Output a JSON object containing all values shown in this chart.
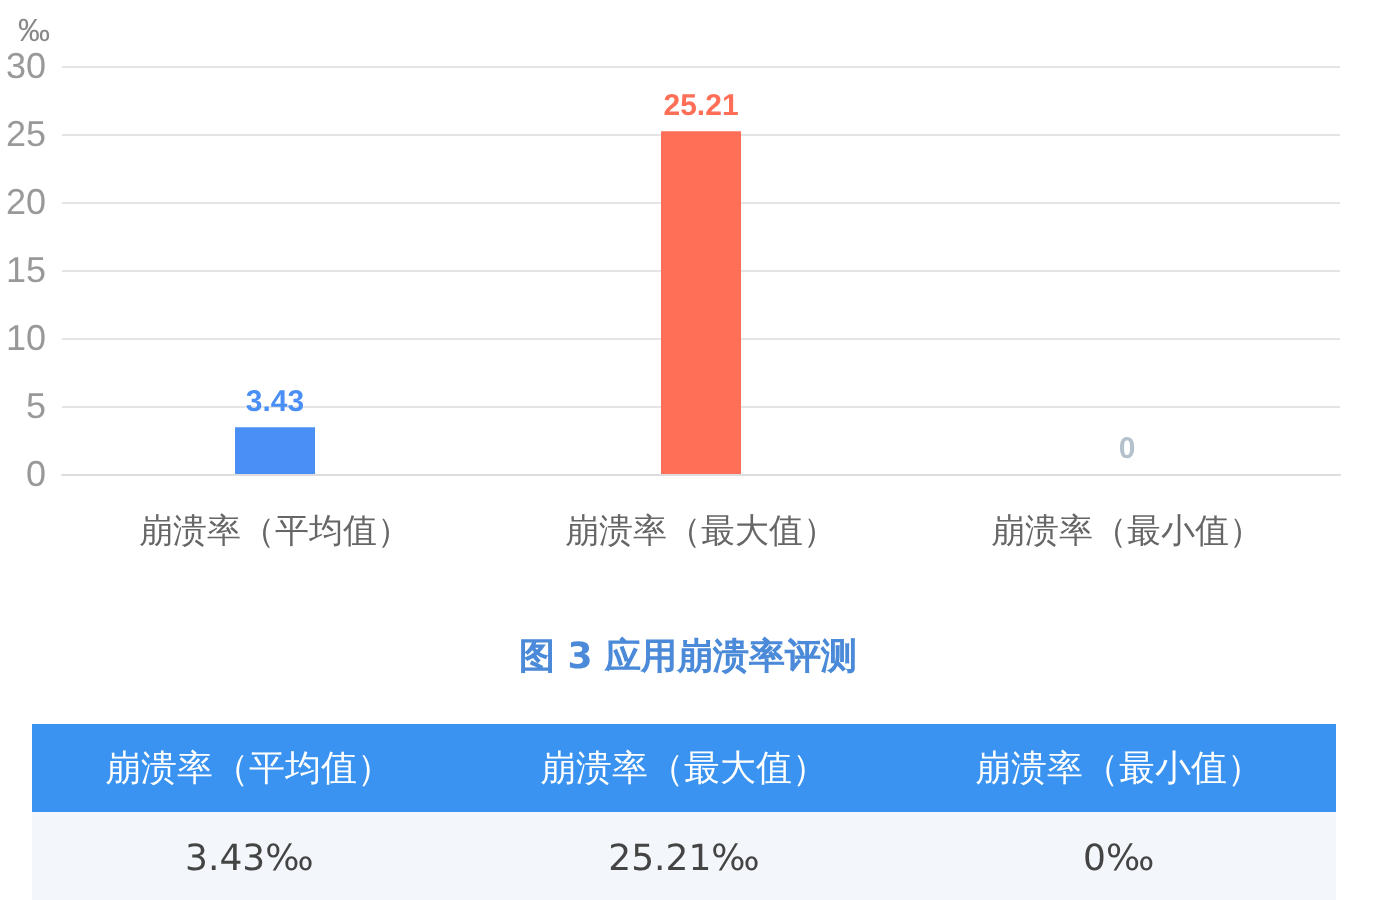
{
  "chart_data": {
    "type": "bar",
    "title": "图 3 应用崩溃率评测",
    "ylabel": "‰",
    "categories": [
      "崩溃率（平均值）",
      "崩溃率（最大值）",
      "崩溃率（最小值）"
    ],
    "values": [
      3.43,
      25.21,
      0
    ],
    "colors": [
      "#4a8ff5",
      "#ff6f57",
      "#b4c0cc"
    ],
    "ylim": [
      0,
      30
    ],
    "yticks": [
      0,
      5,
      10,
      15,
      20,
      25,
      30
    ],
    "grid": "y",
    "data_labels": true,
    "annotations": [
      "3.43‰",
      "25.21‰",
      "0‰"
    ]
  }
}
